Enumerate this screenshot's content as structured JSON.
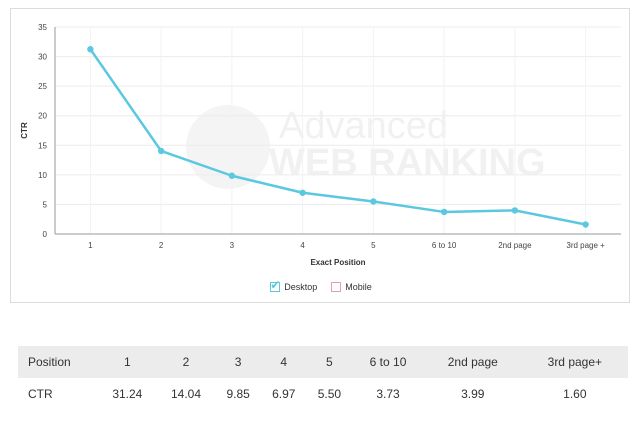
{
  "chart_data": {
    "type": "line",
    "xlabel": "Exact Position",
    "ylabel": "CTR",
    "categories": [
      "1",
      "2",
      "3",
      "4",
      "5",
      "6 to 10",
      "2nd page",
      "3rd page +"
    ],
    "series": [
      {
        "name": "Desktop",
        "values": [
          31.24,
          14.04,
          9.85,
          6.97,
          5.5,
          3.73,
          3.99,
          1.6
        ],
        "color": "#5bc8e0"
      }
    ],
    "ylim": [
      0,
      35
    ],
    "yticks": [
      0,
      5,
      10,
      15,
      20,
      25,
      30,
      35
    ],
    "grid": true,
    "legend_position": "bottom-center",
    "watermark": {
      "line1": "Advanced",
      "line2": "WEB RANKING"
    }
  },
  "legend": {
    "items": [
      {
        "label": "Desktop",
        "checked": true,
        "color": "#5bc8e0"
      },
      {
        "label": "Mobile",
        "checked": false,
        "color": "#e8a0b0"
      }
    ]
  },
  "table": {
    "header_label": "Position",
    "positions": [
      "1",
      "2",
      "3",
      "4",
      "5",
      "6 to 10",
      "2nd page",
      "3rd page+"
    ],
    "row_label": "CTR",
    "ctr_values": [
      "31.24",
      "14.04",
      "9.85",
      "6.97",
      "5.50",
      "3.73",
      "3.99",
      "1.60"
    ]
  }
}
